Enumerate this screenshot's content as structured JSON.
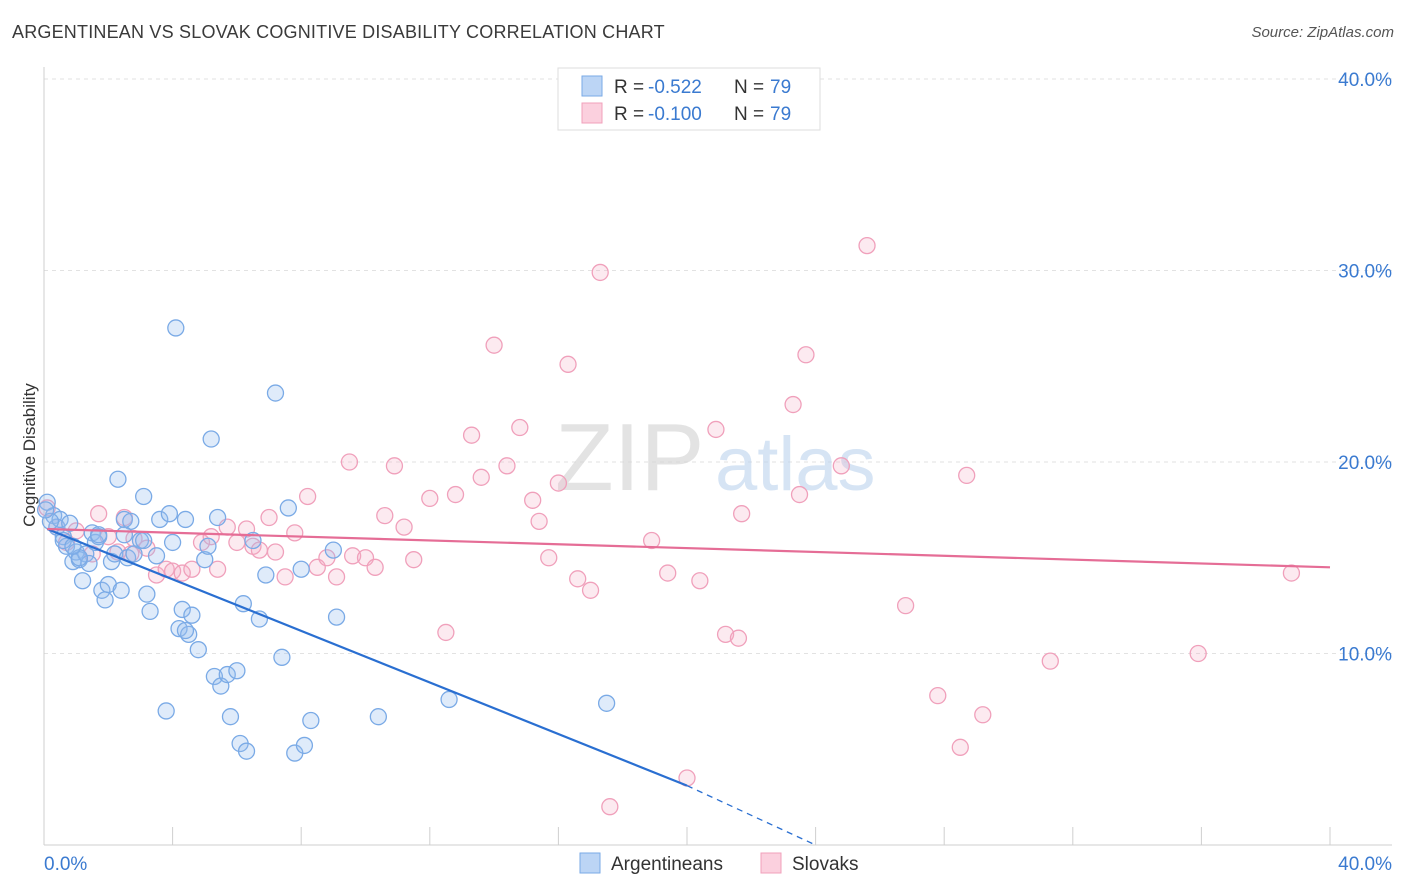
{
  "title": "ARGENTINEAN VS SLOVAK COGNITIVE DISABILITY CORRELATION CHART",
  "source": "Source: ZipAtlas.com",
  "watermark": {
    "bold": "ZIP",
    "light": "atlas"
  },
  "colors": {
    "blue": "#7aaae6",
    "blue_line": "#2a6fd1",
    "pink": "#f0a0bb",
    "pink_line": "#e56d96",
    "axis_text": "#3a7ad0"
  },
  "legend": {
    "rows": [
      {
        "r_label": "R = ",
        "r_value": "-0.522",
        "n_label": "N = ",
        "n_value": "79"
      },
      {
        "r_label": "R = ",
        "r_value": "-0.100",
        "n_label": "N = ",
        "n_value": "79"
      }
    ]
  },
  "bottom_legend": [
    "Argentineans",
    "Slovaks"
  ],
  "chart_data": {
    "type": "scatter",
    "title": "ARGENTINEAN VS SLOVAK COGNITIVE DISABILITY CORRELATION CHART",
    "ylabel": "Cognitive Disability",
    "xlabel": "",
    "xlim": [
      0,
      40
    ],
    "ylim": [
      0,
      40
    ],
    "x_tick_labels": [
      "0.0%",
      "40.0%"
    ],
    "y_tick_labels": [
      "10.0%",
      "20.0%",
      "30.0%",
      "40.0%"
    ],
    "y_ticks": [
      10,
      20,
      30,
      40
    ],
    "grid": true,
    "series": [
      {
        "name": "Argentineans",
        "color": "blue",
        "points": [
          [
            0.1,
            17.9
          ],
          [
            0.3,
            17.2
          ],
          [
            0.4,
            16.6
          ],
          [
            0.5,
            17.0
          ],
          [
            0.6,
            16.1
          ],
          [
            0.7,
            15.6
          ],
          [
            0.8,
            16.8
          ],
          [
            0.9,
            14.8
          ],
          [
            1.0,
            15.3
          ],
          [
            1.1,
            14.9
          ],
          [
            1.2,
            13.8
          ],
          [
            1.3,
            15.2
          ],
          [
            1.4,
            14.7
          ],
          [
            1.5,
            16.3
          ],
          [
            1.6,
            15.8
          ],
          [
            1.7,
            16.1
          ],
          [
            1.8,
            13.3
          ],
          [
            1.9,
            12.8
          ],
          [
            2.0,
            13.6
          ],
          [
            2.1,
            14.8
          ],
          [
            2.2,
            15.2
          ],
          [
            2.3,
            19.1
          ],
          [
            2.4,
            13.3
          ],
          [
            2.5,
            17.0
          ],
          [
            2.6,
            15.0
          ],
          [
            2.7,
            16.9
          ],
          [
            2.8,
            15.2
          ],
          [
            3.0,
            15.9
          ],
          [
            3.1,
            18.2
          ],
          [
            3.2,
            13.1
          ],
          [
            3.3,
            12.2
          ],
          [
            3.5,
            15.1
          ],
          [
            3.6,
            17.0
          ],
          [
            3.8,
            7.0
          ],
          [
            3.9,
            17.3
          ],
          [
            4.0,
            15.8
          ],
          [
            4.1,
            27.0
          ],
          [
            4.2,
            11.3
          ],
          [
            4.3,
            12.3
          ],
          [
            4.4,
            17.0
          ],
          [
            4.5,
            11.0
          ],
          [
            4.6,
            12.0
          ],
          [
            4.8,
            10.2
          ],
          [
            5.0,
            14.9
          ],
          [
            5.1,
            15.6
          ],
          [
            5.2,
            21.2
          ],
          [
            5.3,
            8.8
          ],
          [
            5.4,
            17.1
          ],
          [
            5.5,
            8.3
          ],
          [
            5.7,
            8.9
          ],
          [
            5.8,
            6.7
          ],
          [
            6.0,
            9.1
          ],
          [
            6.1,
            5.3
          ],
          [
            6.2,
            12.6
          ],
          [
            6.3,
            4.9
          ],
          [
            6.5,
            15.9
          ],
          [
            6.7,
            11.8
          ],
          [
            6.9,
            14.1
          ],
          [
            7.2,
            23.6
          ],
          [
            7.4,
            9.8
          ],
          [
            7.6,
            17.6
          ],
          [
            7.8,
            4.8
          ],
          [
            8.0,
            14.4
          ],
          [
            8.1,
            5.2
          ],
          [
            8.3,
            6.5
          ],
          [
            9.0,
            15.4
          ],
          [
            9.1,
            11.9
          ],
          [
            10.4,
            6.7
          ],
          [
            12.6,
            7.6
          ],
          [
            17.5,
            7.4
          ],
          [
            0.2,
            16.9
          ],
          [
            0.6,
            15.9
          ],
          [
            1.1,
            15.0
          ],
          [
            1.7,
            16.2
          ],
          [
            2.5,
            16.2
          ],
          [
            3.1,
            15.9
          ],
          [
            4.4,
            11.2
          ],
          [
            0.05,
            17.5
          ],
          [
            0.9,
            15.6
          ]
        ]
      },
      {
        "name": "Slovaks",
        "color": "pink",
        "points": [
          [
            0.1,
            17.6
          ],
          [
            0.4,
            16.6
          ],
          [
            0.7,
            15.8
          ],
          [
            1.0,
            16.4
          ],
          [
            1.5,
            15.2
          ],
          [
            1.7,
            17.3
          ],
          [
            2.0,
            16.1
          ],
          [
            2.3,
            15.3
          ],
          [
            2.5,
            17.1
          ],
          [
            2.7,
            15.2
          ],
          [
            2.8,
            16.0
          ],
          [
            3.2,
            15.5
          ],
          [
            3.5,
            14.1
          ],
          [
            3.8,
            14.4
          ],
          [
            4.0,
            14.3
          ],
          [
            4.3,
            14.2
          ],
          [
            4.6,
            14.4
          ],
          [
            4.9,
            15.8
          ],
          [
            5.2,
            16.1
          ],
          [
            5.4,
            14.4
          ],
          [
            5.7,
            16.6
          ],
          [
            6.0,
            15.8
          ],
          [
            6.3,
            16.5
          ],
          [
            6.5,
            15.6
          ],
          [
            6.7,
            15.4
          ],
          [
            7.0,
            17.1
          ],
          [
            7.2,
            15.3
          ],
          [
            7.5,
            14.0
          ],
          [
            7.8,
            16.3
          ],
          [
            8.2,
            18.2
          ],
          [
            8.5,
            14.5
          ],
          [
            8.8,
            15.0
          ],
          [
            9.1,
            14.0
          ],
          [
            9.5,
            20.0
          ],
          [
            9.6,
            15.1
          ],
          [
            10.0,
            15.0
          ],
          [
            10.3,
            14.5
          ],
          [
            10.6,
            17.2
          ],
          [
            10.9,
            19.8
          ],
          [
            11.2,
            16.6
          ],
          [
            11.5,
            14.9
          ],
          [
            12.0,
            18.1
          ],
          [
            12.5,
            11.1
          ],
          [
            12.8,
            18.3
          ],
          [
            13.3,
            21.4
          ],
          [
            13.6,
            19.2
          ],
          [
            14.0,
            26.1
          ],
          [
            14.4,
            19.8
          ],
          [
            14.8,
            21.8
          ],
          [
            15.2,
            18.0
          ],
          [
            15.4,
            16.9
          ],
          [
            15.7,
            15.0
          ],
          [
            16.0,
            18.9
          ],
          [
            16.3,
            25.1
          ],
          [
            16.6,
            13.9
          ],
          [
            17.0,
            13.3
          ],
          [
            17.3,
            29.9
          ],
          [
            17.6,
            2.0
          ],
          [
            18.9,
            15.9
          ],
          [
            19.4,
            14.2
          ],
          [
            20.0,
            3.5
          ],
          [
            20.4,
            13.8
          ],
          [
            20.9,
            21.7
          ],
          [
            21.2,
            11.0
          ],
          [
            21.6,
            10.8
          ],
          [
            21.7,
            17.3
          ],
          [
            23.3,
            23.0
          ],
          [
            23.5,
            18.3
          ],
          [
            23.7,
            25.6
          ],
          [
            24.8,
            19.8
          ],
          [
            25.6,
            31.3
          ],
          [
            26.8,
            12.5
          ],
          [
            27.8,
            7.8
          ],
          [
            28.5,
            5.1
          ],
          [
            28.7,
            19.3
          ],
          [
            29.2,
            6.8
          ],
          [
            31.3,
            9.6
          ],
          [
            35.9,
            10.0
          ],
          [
            38.8,
            14.2
          ]
        ]
      }
    ],
    "trend_lines": [
      {
        "series": "Argentineans",
        "x1": 0.1,
        "y1": 16.5,
        "x2": 20.0,
        "y2": 3.1,
        "dashed_to_x": 24.0,
        "dashed_to_y": 0.0
      },
      {
        "series": "Slovaks",
        "x1": 0.1,
        "y1": 16.5,
        "x2": 40.0,
        "y2": 14.5
      }
    ]
  }
}
